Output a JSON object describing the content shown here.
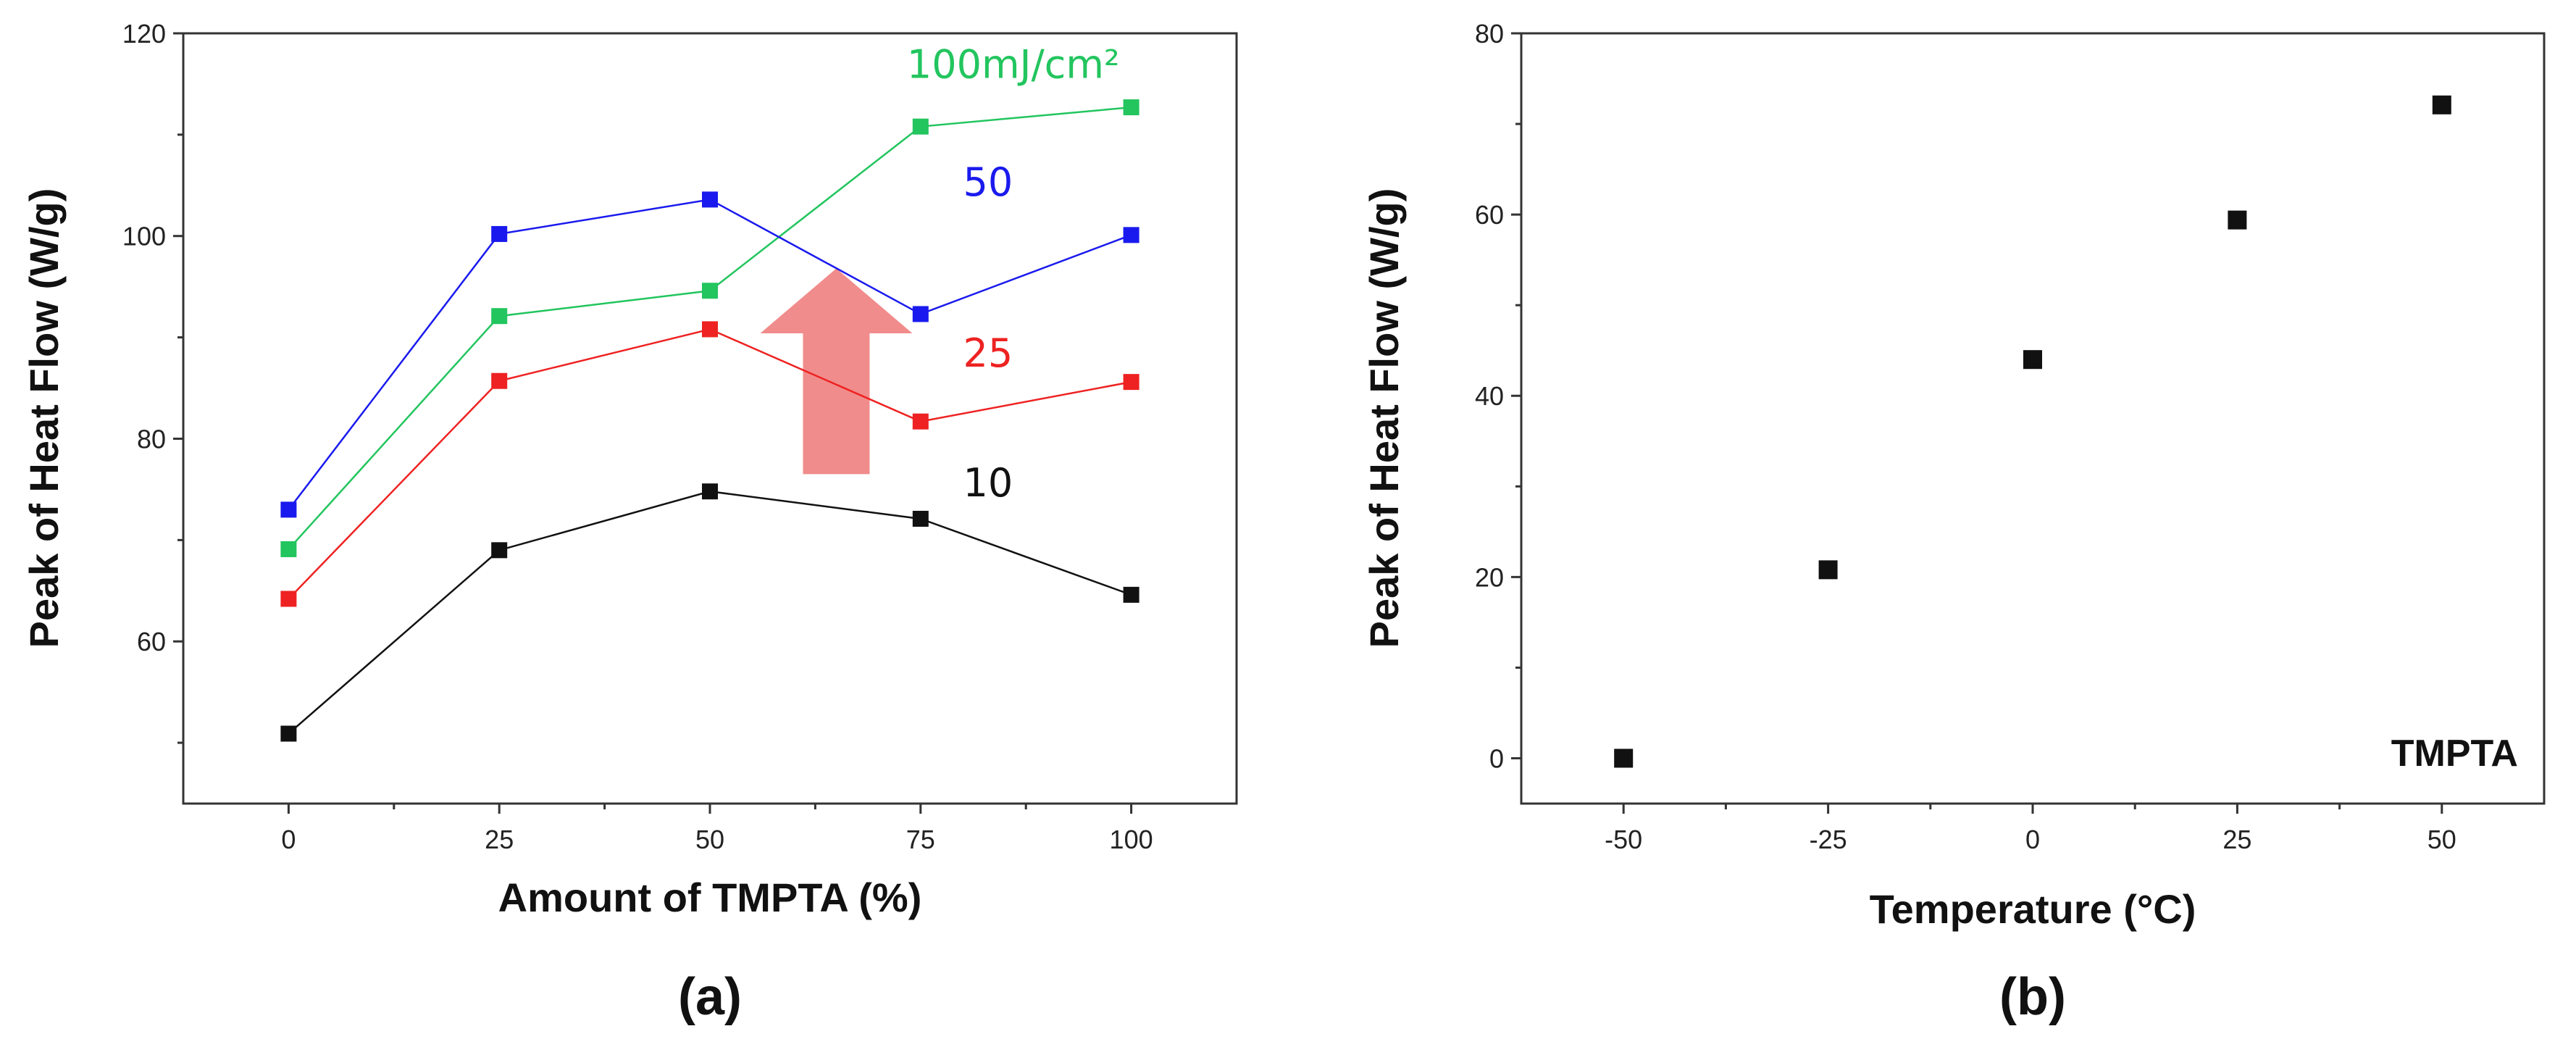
{
  "chart_data": [
    {
      "panel": "a",
      "type": "line",
      "categories": [
        0,
        25,
        50,
        75,
        100
      ],
      "xlabel": "Amount of TMPTA (%)",
      "ylabel": "Peak of Heat Flow (W/g)",
      "xlim": [
        -12.5,
        112.5
      ],
      "ylim": [
        44,
        120
      ],
      "xticks": [
        0,
        25,
        50,
        75,
        100
      ],
      "yticks": [
        60,
        80,
        100,
        120
      ],
      "series": [
        {
          "name": "10",
          "label": "10",
          "color": "#111111",
          "values": [
            50.9,
            69.0,
            74.8,
            72.1,
            64.6
          ]
        },
        {
          "name": "25",
          "label": "25",
          "color": "#ee2222",
          "values": [
            64.2,
            85.7,
            90.8,
            81.7,
            85.6
          ]
        },
        {
          "name": "100mJ/cm2",
          "label": "100mJ/cm²",
          "color": "#22c55e",
          "values": [
            69.1,
            92.1,
            94.6,
            110.8,
            112.7
          ]
        },
        {
          "name": "50",
          "label": "50",
          "color": "#1a1aee",
          "values": [
            73.0,
            100.2,
            103.6,
            92.3,
            100.1
          ]
        }
      ],
      "annotation": {
        "type": "arrow",
        "direction": "up",
        "color": "#f08080"
      }
    },
    {
      "panel": "b",
      "type": "scatter",
      "xlabel": "Temperature (°C)",
      "ylabel": "Peak of Heat Flow (W/g)",
      "xlim": [
        -62.5,
        62.5
      ],
      "ylim": [
        -5,
        80
      ],
      "xticks": [
        -50,
        -25,
        0,
        25,
        50
      ],
      "yticks": [
        0,
        20,
        40,
        60,
        80
      ],
      "x": [
        -50,
        -25,
        0,
        25,
        50
      ],
      "y": [
        0.0,
        20.8,
        44.0,
        59.4,
        72.1
      ],
      "color": "#111111",
      "annotation_text": "TMPTA"
    }
  ],
  "panel_labels": {
    "a": "(a)",
    "b": "(b)"
  }
}
